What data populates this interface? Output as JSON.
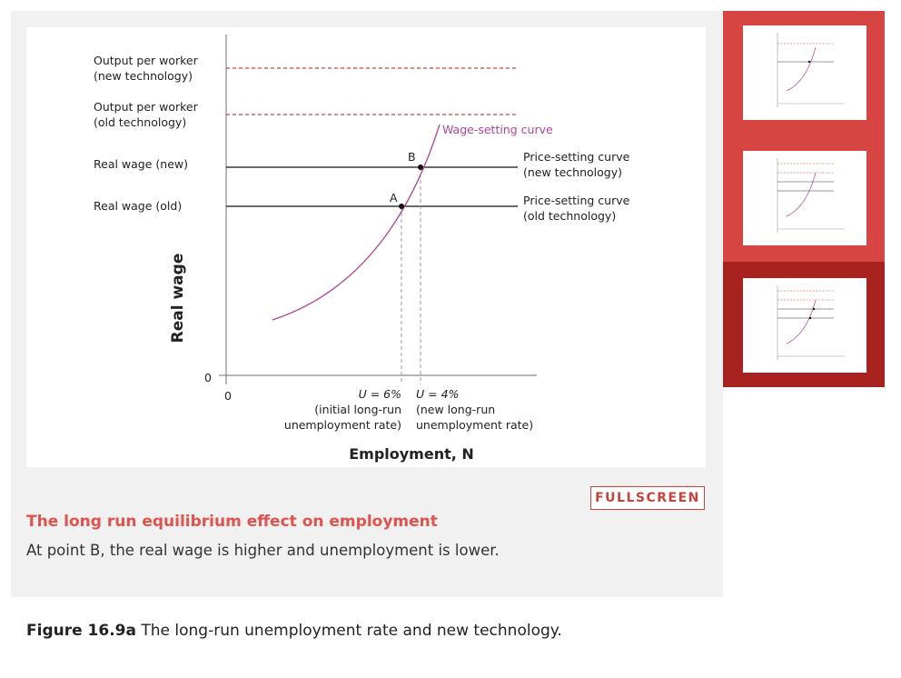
{
  "diagram": {
    "y_axis_label": "Real wage",
    "x_axis_label": "Employment, N",
    "y_levels": [
      {
        "key": "output_new",
        "label_line1": "Output per worker",
        "label_line2": "(new technology)"
      },
      {
        "key": "output_old",
        "label_line1": "Output per worker",
        "label_line2": "(old technology)"
      },
      {
        "key": "wage_new",
        "label": "Real wage (new)"
      },
      {
        "key": "wage_old",
        "label": "Real wage (old)"
      }
    ],
    "origin_y": "0",
    "origin_x": "0",
    "curves": {
      "wage_setting": "Wage-setting curve",
      "price_new_line1": "Price-setting curve",
      "price_new_line2": "(new technology)",
      "price_old_line1": "Price-setting curve",
      "price_old_line2": "(old technology)"
    },
    "points": {
      "a": "A",
      "b": "B"
    },
    "u_old": {
      "line1": "U = 6%",
      "line2": "(initial long-run",
      "line3": "unemployment rate)"
    },
    "u_new": {
      "line1": "U = 4%",
      "line2": "(new long-run",
      "line3": "unemployment rate)"
    },
    "colors": {
      "wage_curve": "#b2439a",
      "dashed_red": "#d8413b",
      "accent": "#e0524b"
    }
  },
  "controls": {
    "fullscreen": "FULLSCREEN"
  },
  "caption": {
    "title": "The long run equilibrium effect on employment",
    "text": "At point B, the real wage is higher and unemployment is lower."
  },
  "figure": {
    "number": "Figure 16.9a",
    "title": "The long-run unemployment rate and new technology."
  },
  "thumbnails": [
    {
      "name": "thumbnail-1",
      "state": "inactive"
    },
    {
      "name": "thumbnail-2",
      "state": "inactive"
    },
    {
      "name": "thumbnail-3",
      "state": "active"
    }
  ]
}
